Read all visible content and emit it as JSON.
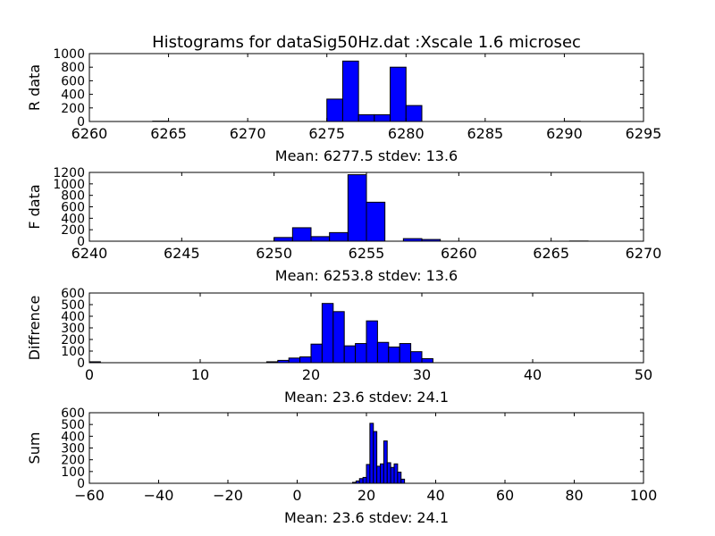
{
  "figure": {
    "title": "Histograms for dataSig50Hz.dat :Xscale 1.6 microsec",
    "bar_color": "#0000ff",
    "bar_edge_color": "#000000"
  },
  "chart_data": [
    {
      "type": "bar",
      "ylabel": "R data",
      "xlabel": "Mean: 6277.5  stdev: 13.6",
      "xlim": [
        6260,
        6295
      ],
      "ylim": [
        0,
        1000
      ],
      "xticks": [
        6260,
        6265,
        6270,
        6275,
        6280,
        6285,
        6290,
        6295
      ],
      "yticks": [
        0,
        200,
        400,
        600,
        800,
        1000
      ],
      "bin_width": 1,
      "bins": [
        {
          "x": 6264,
          "value": 5
        },
        {
          "x": 6275,
          "value": 330
        },
        {
          "x": 6276,
          "value": 890
        },
        {
          "x": 6277,
          "value": 100
        },
        {
          "x": 6278,
          "value": 100
        },
        {
          "x": 6279,
          "value": 800
        },
        {
          "x": 6280,
          "value": 235
        },
        {
          "x": 6290,
          "value": 3
        }
      ],
      "grid": false
    },
    {
      "type": "bar",
      "ylabel": "F data",
      "xlabel": "Mean: 6253.8  stdev: 13.6",
      "xlim": [
        6240,
        6270
      ],
      "ylim": [
        0,
        1200
      ],
      "xticks": [
        6240,
        6245,
        6250,
        6255,
        6260,
        6265,
        6270
      ],
      "yticks": [
        0,
        200,
        400,
        600,
        800,
        1000,
        1200
      ],
      "bin_width": 1,
      "bins": [
        {
          "x": 6250,
          "value": 65
        },
        {
          "x": 6251,
          "value": 235
        },
        {
          "x": 6252,
          "value": 80
        },
        {
          "x": 6253,
          "value": 150
        },
        {
          "x": 6254,
          "value": 1160
        },
        {
          "x": 6255,
          "value": 680
        },
        {
          "x": 6257,
          "value": 45
        },
        {
          "x": 6258,
          "value": 30
        },
        {
          "x": 6266,
          "value": 3
        }
      ],
      "grid": false
    },
    {
      "type": "bar",
      "ylabel": "Diffrence",
      "xlabel": "Mean: 23.6  stdev: 24.1",
      "xlim": [
        0,
        50
      ],
      "ylim": [
        0,
        600
      ],
      "xticks": [
        0,
        10,
        20,
        30,
        40,
        50
      ],
      "yticks": [
        0,
        100,
        200,
        300,
        400,
        500,
        600
      ],
      "bin_width": 1,
      "bins": [
        {
          "x": 0,
          "value": 8
        },
        {
          "x": 16,
          "value": 8
        },
        {
          "x": 17,
          "value": 20
        },
        {
          "x": 18,
          "value": 40
        },
        {
          "x": 19,
          "value": 50
        },
        {
          "x": 20,
          "value": 160
        },
        {
          "x": 21,
          "value": 510
        },
        {
          "x": 22,
          "value": 440
        },
        {
          "x": 23,
          "value": 145
        },
        {
          "x": 24,
          "value": 165
        },
        {
          "x": 25,
          "value": 360
        },
        {
          "x": 26,
          "value": 175
        },
        {
          "x": 27,
          "value": 135
        },
        {
          "x": 28,
          "value": 165
        },
        {
          "x": 29,
          "value": 95
        },
        {
          "x": 30,
          "value": 35
        }
      ],
      "grid": false
    },
    {
      "type": "bar",
      "ylabel": "Sum",
      "xlabel": "Mean: 23.6  stdev: 24.1",
      "xlim": [
        -60,
        100
      ],
      "ylim": [
        0,
        600
      ],
      "xticks": [
        -60,
        -40,
        -20,
        0,
        20,
        40,
        60,
        80,
        100
      ],
      "yticks": [
        0,
        100,
        200,
        300,
        400,
        500,
        600
      ],
      "bin_width": 1,
      "bins": [
        {
          "x": 16,
          "value": 8
        },
        {
          "x": 17,
          "value": 20
        },
        {
          "x": 18,
          "value": 40
        },
        {
          "x": 19,
          "value": 50
        },
        {
          "x": 20,
          "value": 160
        },
        {
          "x": 21,
          "value": 510
        },
        {
          "x": 22,
          "value": 440
        },
        {
          "x": 23,
          "value": 145
        },
        {
          "x": 24,
          "value": 165
        },
        {
          "x": 25,
          "value": 360
        },
        {
          "x": 26,
          "value": 175
        },
        {
          "x": 27,
          "value": 135
        },
        {
          "x": 28,
          "value": 165
        },
        {
          "x": 29,
          "value": 95
        },
        {
          "x": 30,
          "value": 35
        }
      ],
      "grid": false
    }
  ]
}
